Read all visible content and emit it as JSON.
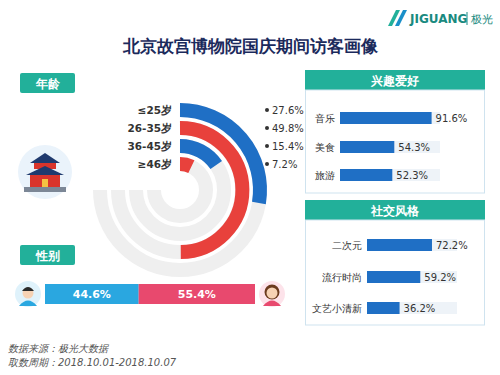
{
  "header": {
    "title": "北京故宫博物院国庆期间访客画像",
    "brand": "JIGUANG",
    "brand_cn": "极光"
  },
  "chart_data": [
    {
      "type": "radial_bar",
      "title": "年龄",
      "categories": [
        "≤25岁",
        "26-35岁",
        "36-45岁",
        "≥46岁"
      ],
      "values": [
        27.6,
        49.8,
        15.4,
        7.2
      ],
      "value_labels": [
        "27.6%",
        "49.8%",
        "15.4%",
        "7.2%"
      ],
      "colors": [
        "#1f6fc5",
        "#e8413c",
        "#1f6fc5",
        "#e8413c"
      ],
      "ylim": [
        0,
        100
      ],
      "data_labels": true
    },
    {
      "type": "bar",
      "title": "性别",
      "orientation": "horizontal",
      "stacked": true,
      "values": [
        44.6,
        55.4
      ],
      "value_labels": [
        "44.6%",
        "55.4%"
      ],
      "colors": [
        "#2aa7e0",
        "#e8496e"
      ],
      "xlim": [
        0,
        100
      ],
      "data_labels": true
    },
    {
      "type": "bar",
      "title": "兴趣爱好",
      "orientation": "horizontal",
      "categories": [
        "音乐",
        "美食",
        "旅游"
      ],
      "values": [
        91.6,
        54.3,
        52.3
      ],
      "value_labels": [
        "91.6%",
        "54.3%",
        "52.3%"
      ],
      "color": "#1f6fc5",
      "xlim": [
        0,
        100
      ],
      "data_labels": true
    },
    {
      "type": "bar",
      "title": "社交风格",
      "orientation": "horizontal",
      "categories": [
        "二次元",
        "流行时尚",
        "文艺小清新"
      ],
      "values": [
        72.2,
        59.2,
        36.2
      ],
      "value_labels": [
        "72.2%",
        "59.2%",
        "36.2%"
      ],
      "color": "#1f6fc5",
      "xlim": [
        0,
        100
      ],
      "data_labels": true
    }
  ],
  "footer": {
    "source": "数据来源：极光大数据",
    "period": "取数周期：2018.10.01-2018.10.07"
  }
}
